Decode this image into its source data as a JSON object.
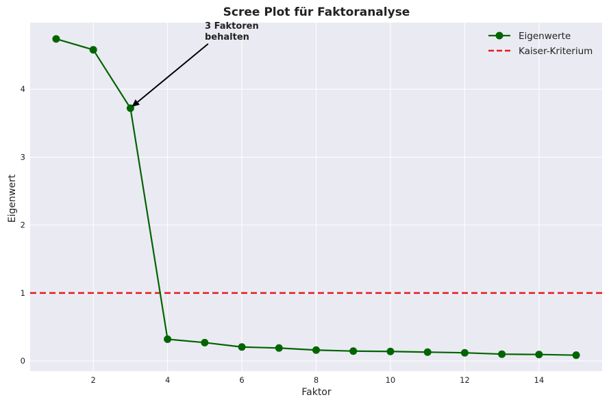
{
  "chart_data": {
    "type": "line",
    "title": "Scree Plot für Faktoranalyse",
    "xlabel": "Faktor",
    "ylabel": "Eigenwert",
    "xlim": [
      0.3,
      15.7
    ],
    "ylim": [
      -0.15,
      4.98
    ],
    "xticks": [
      2,
      4,
      6,
      8,
      10,
      12,
      14
    ],
    "yticks": [
      0,
      1,
      2,
      3,
      4
    ],
    "grid": true,
    "legend_position": "top-right",
    "series": [
      {
        "name": "Eigenwerte",
        "color": "#006400",
        "marker": "circle",
        "x": [
          1,
          2,
          3,
          4,
          5,
          6,
          7,
          8,
          9,
          10,
          11,
          12,
          13,
          14,
          15
        ],
        "y": [
          4.74,
          4.58,
          3.72,
          0.32,
          0.27,
          0.205,
          0.19,
          0.16,
          0.145,
          0.14,
          0.13,
          0.12,
          0.1,
          0.095,
          0.085
        ]
      }
    ],
    "reference_lines": [
      {
        "name": "Kaiser-Kriterium",
        "orientation": "horizontal",
        "y": 1,
        "color": "#e41a1c",
        "style": "dashed"
      }
    ],
    "annotations": [
      {
        "lines": [
          "3 Faktoren",
          "behalten"
        ],
        "point": [
          3,
          3.72
        ],
        "text_at": [
          5,
          4.78
        ]
      }
    ]
  }
}
